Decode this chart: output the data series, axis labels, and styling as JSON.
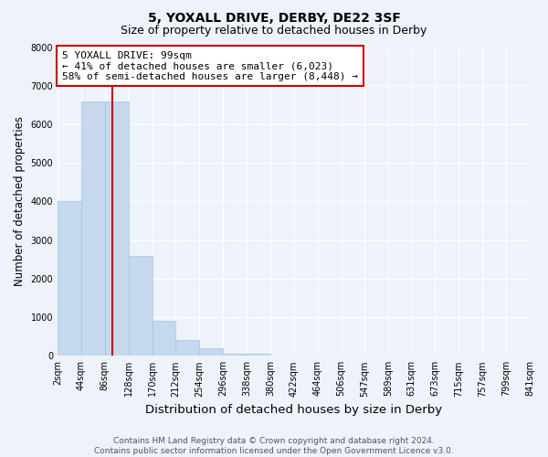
{
  "title": "5, YOXALL DRIVE, DERBY, DE22 3SF",
  "subtitle": "Size of property relative to detached houses in Derby",
  "xlabel": "Distribution of detached houses by size in Derby",
  "ylabel": "Number of detached properties",
  "bar_values": [
    4000,
    6600,
    6600,
    2600,
    900,
    400,
    200,
    50,
    50,
    10,
    5,
    2,
    1,
    1,
    0,
    0,
    0,
    0,
    0,
    0
  ],
  "bin_edges": [
    2,
    44,
    86,
    128,
    170,
    212,
    254,
    296,
    338,
    380,
    422,
    464,
    506,
    547,
    589,
    631,
    673,
    715,
    757,
    799,
    841
  ],
  "tick_labels": [
    "2sqm",
    "44sqm",
    "86sqm",
    "128sqm",
    "170sqm",
    "212sqm",
    "254sqm",
    "296sqm",
    "338sqm",
    "380sqm",
    "422sqm",
    "464sqm",
    "506sqm",
    "547sqm",
    "589sqm",
    "631sqm",
    "673sqm",
    "715sqm",
    "757sqm",
    "799sqm",
    "841sqm"
  ],
  "bar_color": "#c5d8ed",
  "bar_edge_color": "#a8c4de",
  "vline_x": 99,
  "vline_color": "#cc0000",
  "ylim": [
    0,
    8000
  ],
  "yticks": [
    0,
    1000,
    2000,
    3000,
    4000,
    5000,
    6000,
    7000,
    8000
  ],
  "annotation_text": "5 YOXALL DRIVE: 99sqm\n← 41% of detached houses are smaller (6,023)\n58% of semi-detached houses are larger (8,448) →",
  "annotation_box_color": "#ffffff",
  "annotation_box_edge": "#cc0000",
  "footer_text": "Contains HM Land Registry data © Crown copyright and database right 2024.\nContains public sector information licensed under the Open Government Licence v3.0.",
  "background_color": "#eef2fa",
  "title_fontsize": 10,
  "subtitle_fontsize": 9,
  "axis_label_fontsize": 8.5,
  "tick_fontsize": 7,
  "annotation_fontsize": 8,
  "footer_fontsize": 6.5
}
